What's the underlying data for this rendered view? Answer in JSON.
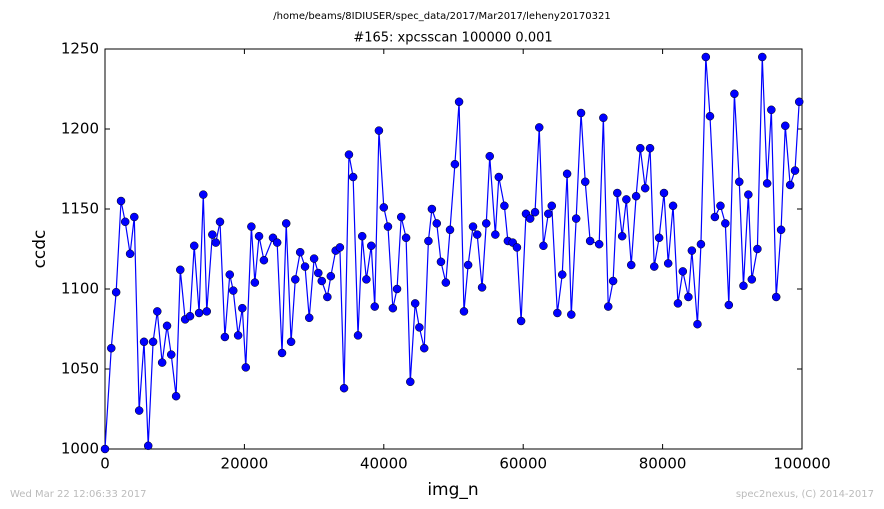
{
  "chart_data": {
    "type": "line",
    "suptitle": "/home/beams/8IDIUSER/spec_data/2017/Mar2017/leheny20170321",
    "title": "#165: xpcsscan 100000 0.001",
    "xlabel": "img_n",
    "ylabel": "ccdc",
    "footer_left": "Wed Mar 22 12:06:33 2017",
    "footer_right": "spec2nexus, (C) 2014-2017",
    "x": [
      0,
      900,
      1600,
      2300,
      2900,
      3600,
      4200,
      4900,
      5600,
      6200,
      6900,
      7500,
      8200,
      8900,
      9500,
      10200,
      10800,
      11500,
      12200,
      12800,
      13500,
      14100,
      14600,
      15400,
      15900,
      16500,
      17200,
      17900,
      18400,
      19100,
      19700,
      20200,
      21000,
      21500,
      22100,
      22800,
      24100,
      24700,
      25400,
      26000,
      26700,
      27300,
      28000,
      28700,
      29300,
      30000,
      30600,
      31100,
      31900,
      32400,
      33100,
      33700,
      34300,
      35000,
      35600,
      36300,
      36900,
      37500,
      38200,
      38700,
      39300,
      40000,
      40600,
      41300,
      41900,
      42500,
      43200,
      43800,
      44500,
      45100,
      45800,
      46400,
      46900,
      47600,
      48200,
      48900,
      49500,
      50200,
      50800,
      51500,
      52100,
      52800,
      53400,
      54100,
      54700,
      55200,
      56000,
      56500,
      57300,
      57800,
      58500,
      59100,
      59700,
      60400,
      61000,
      61700,
      62300,
      62900,
      63600,
      64100,
      64900,
      65600,
      66300,
      66900,
      67600,
      68300,
      68900,
      69600,
      70900,
      71500,
      72200,
      72900,
      73500,
      74200,
      74800,
      75500,
      76200,
      76800,
      77500,
      78200,
      78800,
      79500,
      80200,
      80800,
      81500,
      82200,
      82900,
      83700,
      84200,
      85000,
      85500,
      86200,
      86800,
      87500,
      88300,
      89000,
      89500,
      90300,
      91000,
      91600,
      92300,
      92800,
      93600,
      94300,
      95000,
      95600,
      96300,
      97000,
      97600,
      98300,
      99000,
      99600
    ],
    "series": [
      {
        "name": "ccdc",
        "color": "#0000ff",
        "values": [
          1000,
          1063,
          1098,
          1155,
          1142,
          1122,
          1145,
          1024,
          1067,
          1002,
          1067,
          1086,
          1054,
          1077,
          1059,
          1033,
          1112,
          1081,
          1083,
          1127,
          1085,
          1159,
          1086,
          1134,
          1129,
          1142,
          1070,
          1109,
          1099,
          1071,
          1088,
          1051,
          1139,
          1104,
          1133,
          1118,
          1132,
          1129,
          1060,
          1141,
          1067,
          1106,
          1123,
          1114,
          1082,
          1119,
          1110,
          1105,
          1095,
          1108,
          1124,
          1126,
          1038,
          1184,
          1170,
          1071,
          1133,
          1106,
          1127,
          1089,
          1199,
          1151,
          1139,
          1088,
          1100,
          1145,
          1132,
          1042,
          1091,
          1076,
          1063,
          1130,
          1150,
          1141,
          1117,
          1104,
          1137,
          1178,
          1217,
          1086,
          1115,
          1139,
          1134,
          1101,
          1141,
          1183,
          1134,
          1170,
          1152,
          1130,
          1129,
          1126,
          1080,
          1147,
          1144,
          1148,
          1201,
          1127,
          1147,
          1152,
          1085,
          1109,
          1172,
          1084,
          1144,
          1210,
          1167,
          1130,
          1128,
          1207,
          1089,
          1105,
          1160,
          1133,
          1156,
          1115,
          1158,
          1188,
          1163,
          1188,
          1114,
          1132,
          1160,
          1116,
          1152,
          1091,
          1111,
          1095,
          1124,
          1078,
          1128,
          1245,
          1208,
          1145,
          1152,
          1141,
          1090,
          1222,
          1167,
          1102,
          1159,
          1106,
          1125,
          1245,
          1166,
          1212,
          1095,
          1137,
          1202,
          1165,
          1174,
          1217
        ]
      }
    ],
    "xlim": [
      0,
      100000
    ],
    "xticks": [
      0,
      20000,
      40000,
      60000,
      80000,
      100000
    ],
    "ylim": [
      1000,
      1250
    ],
    "yticks": [
      1000,
      1050,
      1100,
      1150,
      1200,
      1250
    ],
    "grid": false
  }
}
